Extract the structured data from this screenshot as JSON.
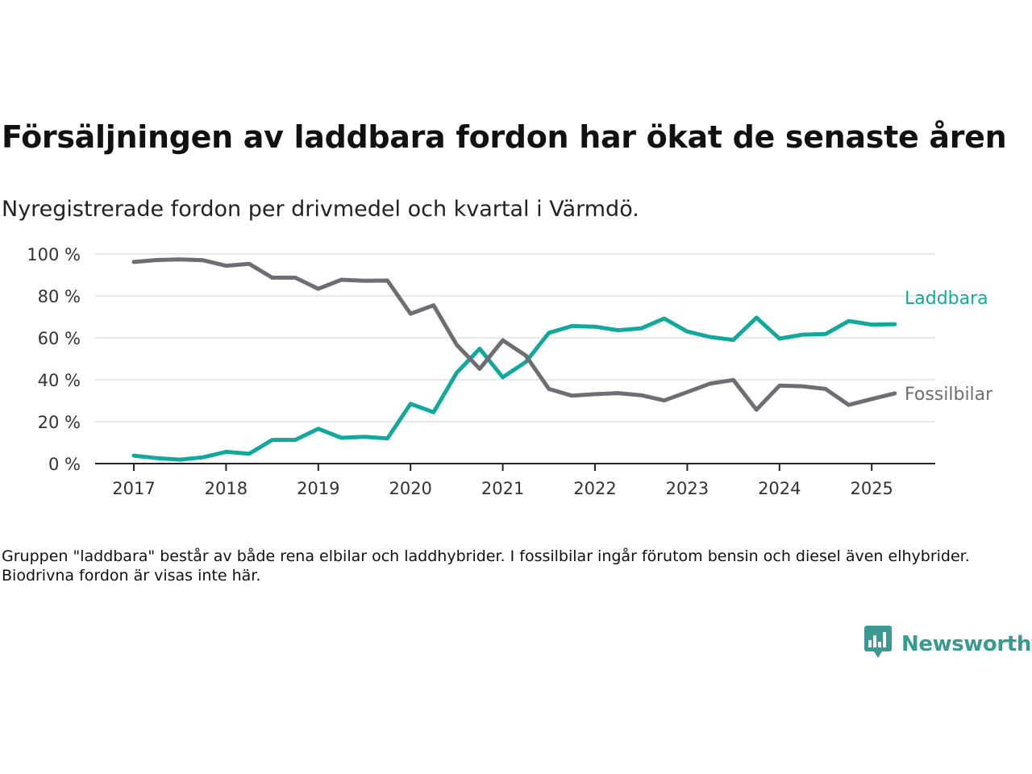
{
  "title": "Försäljningen av laddbara fordon har ökat de senaste åren",
  "subtitle": "Nyregistrerade fordon per drivmedel och kvartal i Värmdö.",
  "note": "Gruppen \"laddbara\" består av både rena elbilar och laddhybrider. I fossilbilar ingår förutom bensin och diesel även elhybrider. Biodrivna fordon är visas inte här.",
  "brand": {
    "name": "Newsworthy",
    "icon": "newsworthy-logo-icon",
    "color": "#3a9a92"
  },
  "chart_data": {
    "type": "line",
    "title": "",
    "xlabel": "",
    "ylabel": "",
    "ylim": [
      0,
      100
    ],
    "yticks": [
      0,
      20,
      40,
      60,
      80,
      100
    ],
    "ytick_labels": [
      "0 %",
      "20 %",
      "40 %",
      "60 %",
      "80 %",
      "100 %"
    ],
    "xticks": [
      2017,
      2018,
      2019,
      2020,
      2021,
      2022,
      2023,
      2024,
      2025
    ],
    "xtick_labels": [
      "2017",
      "2018",
      "2019",
      "2020",
      "2021",
      "2022",
      "2023",
      "2024",
      "2025"
    ],
    "grid": true,
    "x": [
      "2017 Q1",
      "2017 Q2",
      "2017 Q3",
      "2017 Q4",
      "2018 Q1",
      "2018 Q2",
      "2018 Q3",
      "2018 Q4",
      "2019 Q1",
      "2019 Q2",
      "2019 Q3",
      "2019 Q4",
      "2020 Q1",
      "2020 Q2",
      "2020 Q3",
      "2020 Q4",
      "2021 Q1",
      "2021 Q2",
      "2021 Q3",
      "2021 Q4",
      "2022 Q1",
      "2022 Q2",
      "2022 Q3",
      "2022 Q4",
      "2023 Q1",
      "2023 Q2",
      "2023 Q3",
      "2023 Q4",
      "2024 Q1",
      "2024 Q2",
      "2024 Q3",
      "2024 Q4",
      "2025 Q1",
      "2025 Q2"
    ],
    "series": [
      {
        "name": "Laddbara",
        "color": "#13a89e",
        "values": [
          3.8,
          2.6,
          1.9,
          3.0,
          5.6,
          4.7,
          11.3,
          11.3,
          16.6,
          12.3,
          12.8,
          12.0,
          28.5,
          24.5,
          43.3,
          54.8,
          41.2,
          48.5,
          62.4,
          65.6,
          65.3,
          63.6,
          64.5,
          69.2,
          63.0,
          60.4,
          59.0,
          69.6,
          59.6,
          61.5,
          61.8,
          68.0,
          66.3,
          66.5
        ]
      },
      {
        "name": "Fossilbilar",
        "color": "#6d6e74",
        "values": [
          96.2,
          97.1,
          97.4,
          97.0,
          94.4,
          95.3,
          88.7,
          88.7,
          83.4,
          87.7,
          87.2,
          87.3,
          71.5,
          75.5,
          56.7,
          45.2,
          58.8,
          51.5,
          35.6,
          32.4,
          33.1,
          33.6,
          32.6,
          30.1,
          34.1,
          38.2,
          39.9,
          25.7,
          37.2,
          36.9,
          35.6,
          28.0,
          30.8,
          33.5
        ]
      }
    ]
  }
}
